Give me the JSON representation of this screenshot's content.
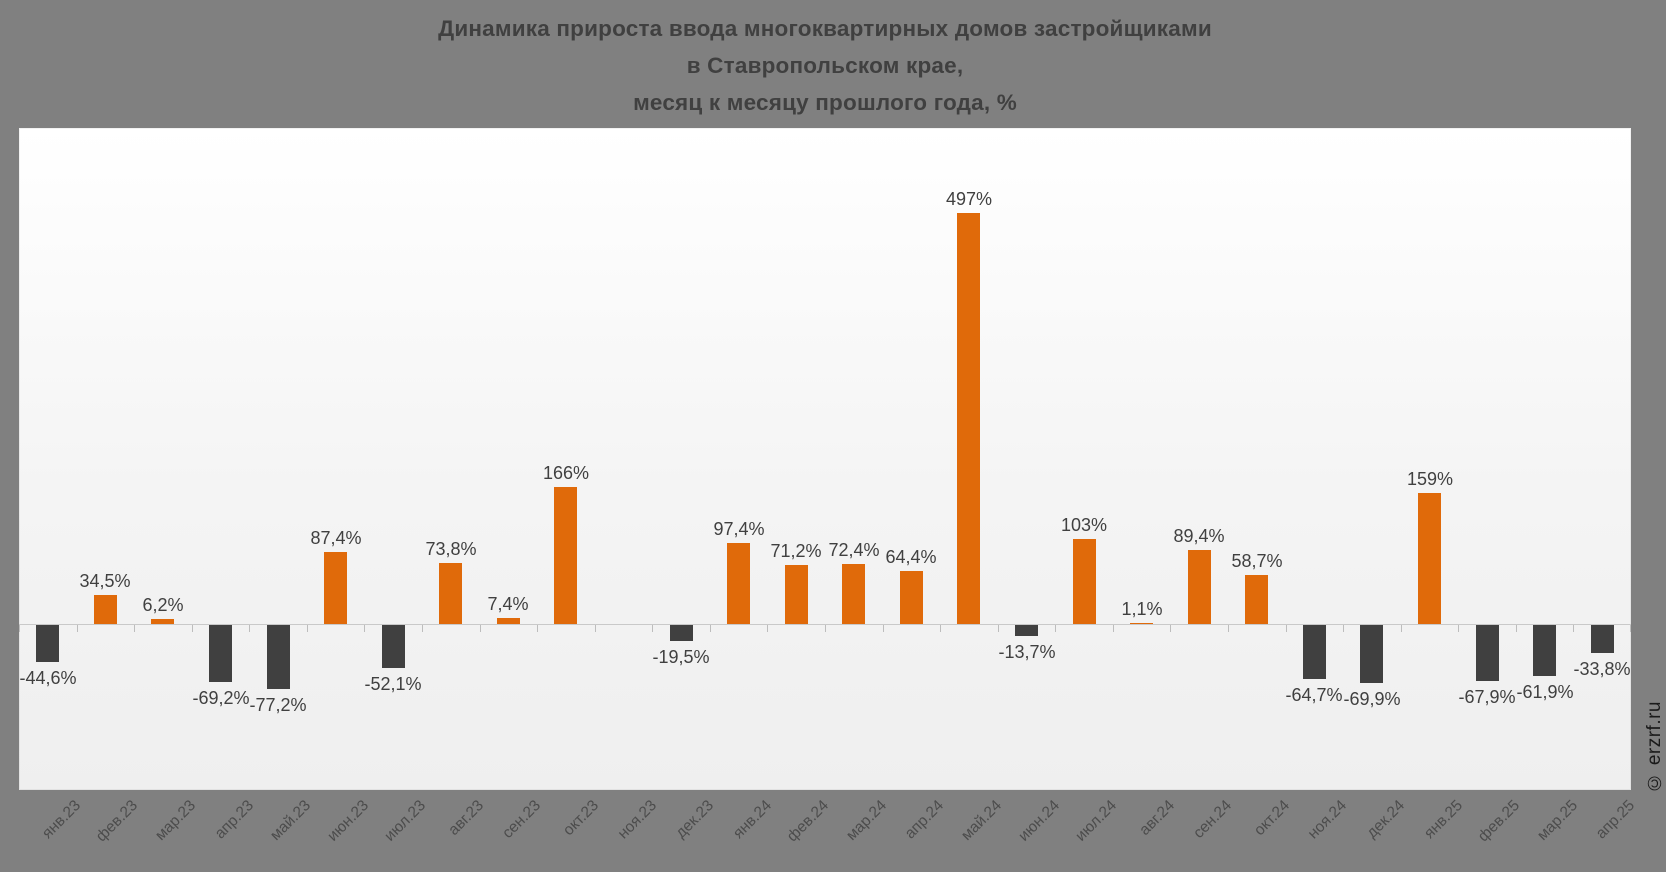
{
  "title": {
    "line1": "Динамика прироста ввода многоквартирных домов застройщиками",
    "line2": "в Ставропольском крае,",
    "line3": "месяц к месяцу прошлого года, %"
  },
  "watermark": "© erzrf.ru",
  "colors": {
    "positive_bar": "#e06a0a",
    "negative_bar": "#404040",
    "outer_background": "#808080",
    "panel_background_top": "#ffffff",
    "panel_background_bottom": "#efefef",
    "axis_line": "#c9c9c9",
    "value_label": "#404040",
    "axis_tick_label": "#4c4c4c"
  },
  "chart_data": {
    "type": "bar",
    "title": "Динамика прироста ввода многоквартирных домов застройщиками в Ставропольском крае, месяц к месяцу прошлого года, %",
    "categories": [
      "янв.23",
      "фев.23",
      "мар.23",
      "апр.23",
      "май.23",
      "июн.23",
      "июл.23",
      "авг.23",
      "сен.23",
      "окт.23",
      "ноя.23",
      "дек.23",
      "янв.24",
      "фев.24",
      "мар.24",
      "апр.24",
      "май.24",
      "июн.24",
      "июл.24",
      "авг.24",
      "сен.24",
      "окт.24",
      "ноя.24",
      "дек.24",
      "янв.25",
      "фев.25",
      "мар.25",
      "апр.25"
    ],
    "values": [
      -44.6,
      34.5,
      6.2,
      -69.2,
      -77.2,
      87.4,
      -52.1,
      73.8,
      7.4,
      166,
      null,
      -19.5,
      97.4,
      71.2,
      72.4,
      64.4,
      497,
      -13.7,
      103,
      1.1,
      89.4,
      58.7,
      -64.7,
      -69.9,
      159,
      -67.9,
      -61.9,
      -33.8
    ],
    "value_labels": [
      "-44,6%",
      "34,5%",
      "6,2%",
      "-69,2%",
      "-77,2%",
      "87,4%",
      "-52,1%",
      "73,8%",
      "7,4%",
      "166%",
      "",
      "-19,5%",
      "97,4%",
      "71,2%",
      "72,4%",
      "64,4%",
      "497%",
      "-13,7%",
      "103%",
      "1,1%",
      "89,4%",
      "58,7%",
      "-64,7%",
      "-69,9%",
      "159%",
      "-67,9%",
      "-61,9%",
      "-33,8%"
    ],
    "xlabel": "",
    "ylabel": "",
    "ylim": [
      -200,
      600
    ],
    "grid": false,
    "legend": false,
    "bar_label_position": "outside_end"
  }
}
